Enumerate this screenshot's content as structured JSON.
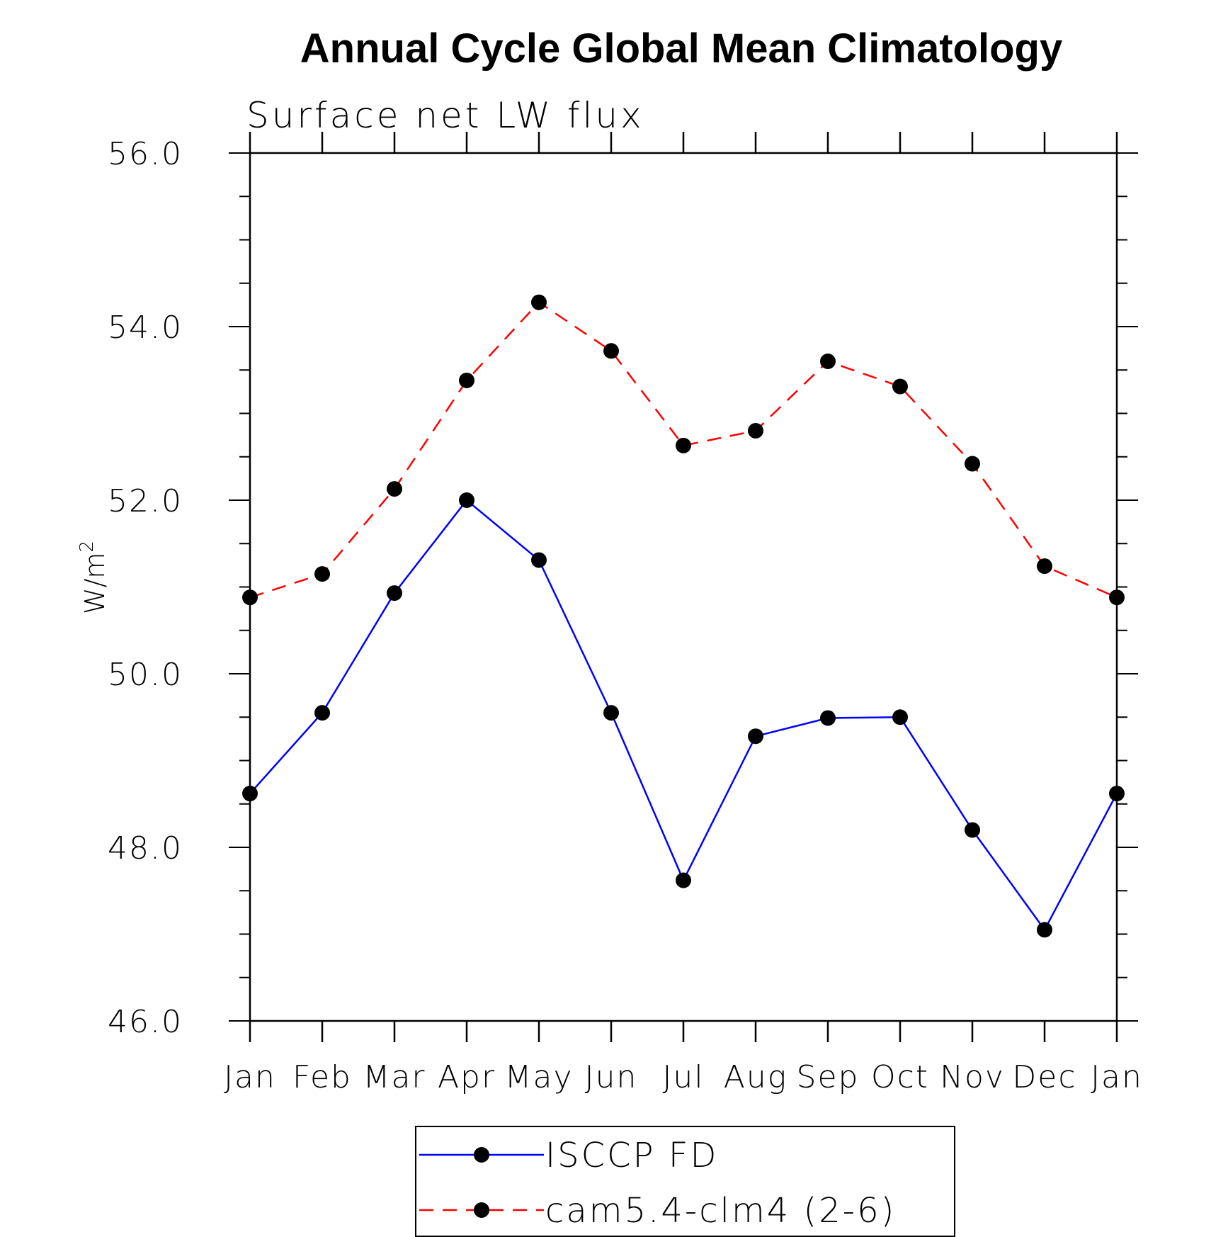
{
  "chart_data": {
    "type": "line",
    "title": "Annual Cycle Global Mean Climatology",
    "subtitle": "Surface net LW flux",
    "ylabel": "W/m",
    "ylabel_superscript": "2",
    "ylim": [
      46.0,
      56.0
    ],
    "y_ticks": [
      "46.0",
      "48.0",
      "50.0",
      "52.0",
      "54.0",
      "56.0"
    ],
    "categories": [
      "Jan",
      "Feb",
      "Mar",
      "Apr",
      "May",
      "Jun",
      "Jul",
      "Aug",
      "Sep",
      "Oct",
      "Nov",
      "Dec",
      "Jan"
    ],
    "series": [
      {
        "name": "ISCCP FD",
        "color": "#0000ff",
        "dash": "solid",
        "values": [
          48.62,
          49.55,
          50.93,
          52.0,
          51.31,
          49.55,
          47.62,
          49.28,
          49.49,
          49.5,
          48.2,
          47.05,
          48.62
        ]
      },
      {
        "name": "cam5.4-clm4 (2-6)",
        "color": "#ff0000",
        "dash": "dashed",
        "values": [
          50.88,
          51.15,
          52.13,
          53.38,
          54.28,
          53.72,
          52.63,
          52.8,
          53.6,
          53.31,
          52.42,
          51.24,
          50.88
        ]
      }
    ],
    "grid": false,
    "legend_position": "bottom-center"
  }
}
